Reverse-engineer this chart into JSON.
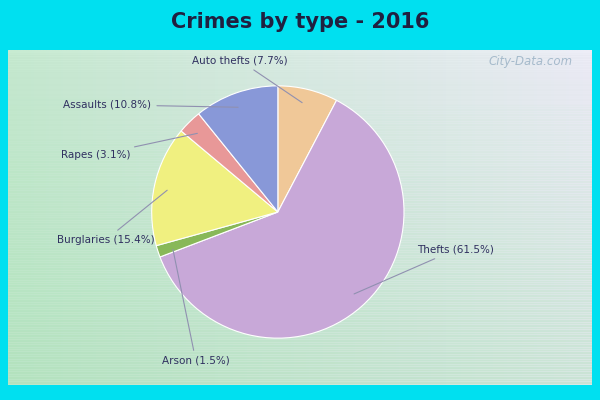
{
  "title": "Crimes by type - 2016",
  "title_fontsize": 15,
  "slices": [
    {
      "label": "Auto thefts (7.7%)",
      "pct": 7.7,
      "color": "#f0c898"
    },
    {
      "label": "Thefts (61.5%)",
      "pct": 61.5,
      "color": "#c8a8d8"
    },
    {
      "label": "Arson (1.5%)",
      "pct": 1.5,
      "color": "#88b858"
    },
    {
      "label": "Burglaries (15.4%)",
      "pct": 15.4,
      "color": "#f0f080"
    },
    {
      "label": "Rapes (3.1%)",
      "pct": 3.1,
      "color": "#e89898"
    },
    {
      "label": "Assaults (10.8%)",
      "pct": 10.8,
      "color": "#8898d8"
    }
  ],
  "bg_cyan": "#00e0f0",
  "bg_gradient_colors": [
    "#c8e8d0",
    "#dce8f0",
    "#e8e8f8"
  ],
  "watermark": "City-Data.com",
  "label_color": "#303060",
  "line_color": "#9090b0",
  "text_color": "#202040"
}
